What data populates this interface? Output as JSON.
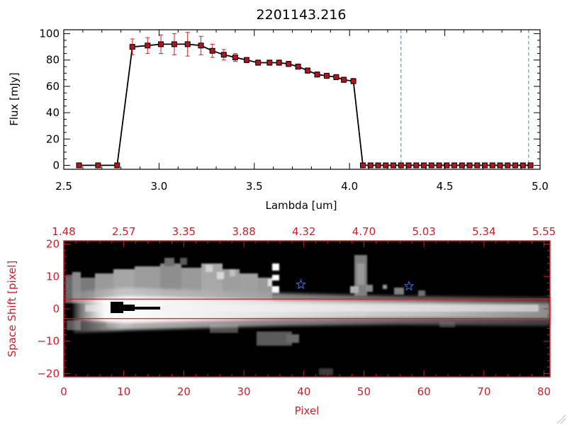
{
  "colors": {
    "axis_black": "#000000",
    "axis_red": "#c8202a",
    "marker_fill": "#b0141e",
    "errorbar": "#e01a22",
    "vline_blue": "#3a8fd8",
    "vline_green": "#3fa85a",
    "star": "#3b6ff0",
    "extract_line": "#e0141e"
  },
  "chart_data": [
    {
      "type": "line",
      "title": "2201143.216",
      "xlabel": "Lambda [um]",
      "ylabel": "Flux [mJy]",
      "xlim": [
        2.5,
        5.0
      ],
      "ylim": [
        -3,
        103
      ],
      "x_ticks": [
        {
          "v": 2.5,
          "label": "2.5"
        },
        {
          "v": 3.0,
          "label": "3.0"
        },
        {
          "v": 3.5,
          "label": "3.5"
        },
        {
          "v": 4.0,
          "label": "4.0"
        },
        {
          "v": 4.5,
          "label": "4.5"
        },
        {
          "v": 5.0,
          "label": "5.0"
        }
      ],
      "y_ticks": [
        {
          "v": 0,
          "label": "0"
        },
        {
          "v": 20,
          "label": "20"
        },
        {
          "v": 40,
          "label": "40"
        },
        {
          "v": 60,
          "label": "60"
        },
        {
          "v": 80,
          "label": "80"
        },
        {
          "v": 100,
          "label": "100"
        }
      ],
      "grid": false,
      "series": [
        {
          "x": [
            2.58,
            2.68,
            2.78,
            2.86,
            2.94,
            3.01,
            3.08,
            3.15,
            3.22,
            3.28,
            3.34,
            3.4,
            3.46,
            3.52,
            3.58,
            3.63,
            3.68,
            3.73,
            3.78,
            3.83,
            3.88,
            3.93,
            3.97,
            4.02,
            4.07,
            4.11,
            4.15,
            4.19,
            4.23,
            4.27,
            4.31,
            4.35,
            4.39,
            4.43,
            4.47,
            4.51,
            4.55,
            4.59,
            4.63,
            4.67,
            4.71,
            4.75,
            4.79,
            4.83,
            4.87,
            4.91,
            4.95
          ],
          "y": [
            0,
            0,
            0,
            90,
            91,
            92,
            92,
            92,
            91,
            87,
            84,
            82,
            80,
            78,
            78,
            78,
            77,
            75,
            72,
            69,
            68,
            67,
            65,
            64,
            0,
            0,
            0,
            0,
            0,
            0,
            0,
            0,
            0,
            0,
            0,
            0,
            0,
            0,
            0,
            0,
            0,
            0,
            0,
            0,
            0,
            0,
            0
          ],
          "yerr": [
            0,
            0,
            0,
            6,
            6,
            7,
            8,
            9,
            7,
            5,
            4,
            3,
            2,
            2,
            2,
            2,
            2,
            2,
            2,
            2,
            2,
            2,
            2,
            2,
            0,
            0,
            0,
            0,
            0,
            0,
            0,
            0,
            0,
            0,
            0,
            0,
            0,
            0,
            0,
            0,
            0,
            0,
            0,
            0,
            0,
            0,
            0
          ]
        }
      ],
      "vlines": [
        {
          "x": 4.27,
          "color": "#3a8fd8"
        },
        {
          "x": 4.94,
          "color": "#3fa85a"
        }
      ]
    },
    {
      "type": "heatmap",
      "xlabel": "Pixel",
      "ylabel": "Space Shift [pixel]",
      "xlim": [
        0,
        81
      ],
      "ylim": [
        -21,
        21
      ],
      "x_ticks": [
        {
          "v": 0,
          "label": "0"
        },
        {
          "v": 10,
          "label": "10"
        },
        {
          "v": 20,
          "label": "20"
        },
        {
          "v": 30,
          "label": "30"
        },
        {
          "v": 40,
          "label": "40"
        },
        {
          "v": 50,
          "label": "50"
        },
        {
          "v": 60,
          "label": "60"
        },
        {
          "v": 70,
          "label": "70"
        },
        {
          "v": 80,
          "label": "80"
        }
      ],
      "y_ticks": [
        {
          "v": -20,
          "label": "−20"
        },
        {
          "v": -10,
          "label": "−10"
        },
        {
          "v": 0,
          "label": "0"
        },
        {
          "v": 10,
          "label": "10"
        },
        {
          "v": 20,
          "label": "20"
        }
      ],
      "top_ticks": [
        {
          "v": 0,
          "label": "1.48"
        },
        {
          "v": 10,
          "label": "2.57"
        },
        {
          "v": 20,
          "label": "3.35"
        },
        {
          "v": 30,
          "label": "3.88"
        },
        {
          "v": 40,
          "label": "4.32"
        },
        {
          "v": 50,
          "label": "4.70"
        },
        {
          "v": 60,
          "label": "5.03"
        },
        {
          "v": 70,
          "label": "5.34"
        },
        {
          "v": 80,
          "label": "5.55"
        }
      ],
      "extraction_lines": [
        3,
        -3
      ],
      "stars": [
        {
          "x": 39.5,
          "y": 7.5
        },
        {
          "x": 57.5,
          "y": 7.0
        }
      ]
    }
  ]
}
